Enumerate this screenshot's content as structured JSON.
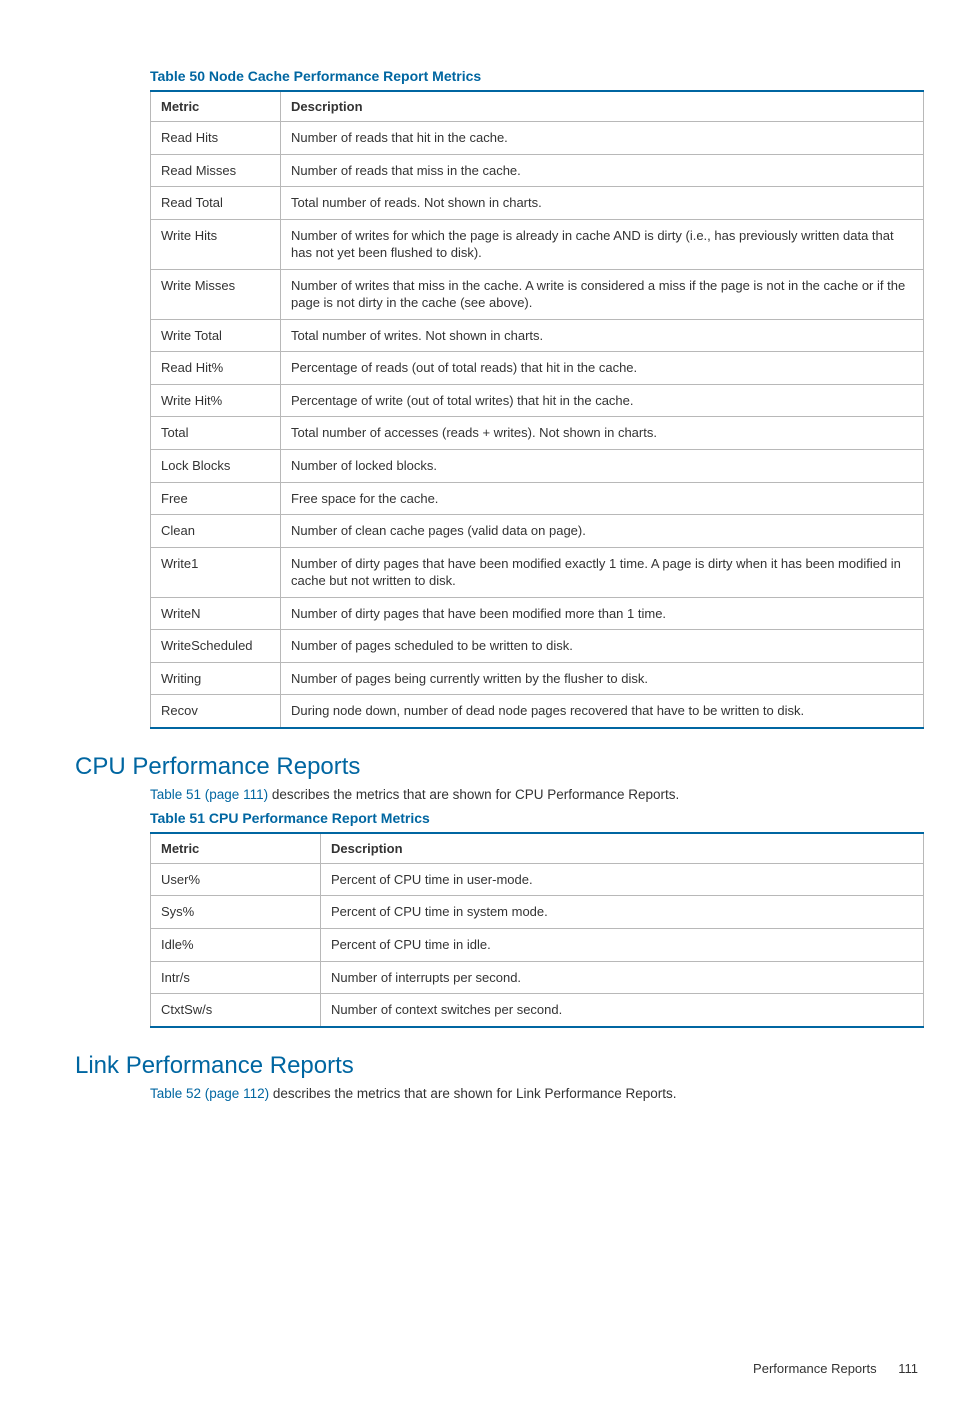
{
  "table50": {
    "title": "Table 50 Node Cache Performance Report Metrics",
    "columns": [
      "Metric",
      "Description"
    ],
    "rows": [
      [
        "Read Hits",
        "Number of reads that hit in the cache."
      ],
      [
        "Read Misses",
        "Number of reads that miss in the cache."
      ],
      [
        "Read Total",
        "Total number of reads. Not shown in charts."
      ],
      [
        "Write Hits",
        "Number of writes for which the page is already in cache AND is dirty (i.e., has previously written data that has not yet been flushed to disk)."
      ],
      [
        "Write Misses",
        "Number of writes that miss in the cache. A write is considered a miss if the page is not in the cache or if the page is not dirty in the cache (see above)."
      ],
      [
        "Write Total",
        "Total number of writes. Not shown in charts."
      ],
      [
        "Read Hit%",
        "Percentage of reads (out of total reads) that hit in the cache."
      ],
      [
        "Write Hit%",
        "Percentage of write (out of total writes) that hit in the cache."
      ],
      [
        "Total",
        "Total number of accesses (reads + writes). Not shown in charts."
      ],
      [
        "Lock Blocks",
        "Number of locked blocks."
      ],
      [
        "Free",
        "Free space for the cache."
      ],
      [
        "Clean",
        "Number of clean cache pages (valid data on page)."
      ],
      [
        "Write1",
        "Number of dirty pages that have been modified exactly 1 time. A page is dirty when it has been modified in cache but not written to disk."
      ],
      [
        "WriteN",
        "Number of dirty pages that have been modified more than 1 time."
      ],
      [
        "WriteScheduled",
        "Number of pages scheduled to be written to disk."
      ],
      [
        "Writing",
        "Number of pages being currently written by the flusher to disk."
      ],
      [
        "Recov",
        "During node down, number of dead node pages recovered that have to be written to disk."
      ]
    ]
  },
  "section_cpu": {
    "heading": "CPU Performance Reports",
    "intro_link": "Table 51 (page 111)",
    "intro_rest": " describes the metrics that are shown for CPU Performance Reports."
  },
  "table51": {
    "title": "Table 51 CPU Performance Report Metrics",
    "columns": [
      "Metric",
      "Description"
    ],
    "rows": [
      [
        "User%",
        "Percent of CPU time in user-mode."
      ],
      [
        "Sys%",
        "Percent of CPU time in system mode."
      ],
      [
        "Idle%",
        "Percent of CPU time in idle."
      ],
      [
        "Intr/s",
        "Number of interrupts per second."
      ],
      [
        "CtxtSw/s",
        "Number of context switches per second."
      ]
    ]
  },
  "section_link": {
    "heading": "Link Performance Reports",
    "intro_link": "Table 52 (page 112)",
    "intro_rest": " describes the metrics that are shown for Link Performance Reports."
  },
  "footer": {
    "title": "Performance Reports",
    "page": "111"
  }
}
